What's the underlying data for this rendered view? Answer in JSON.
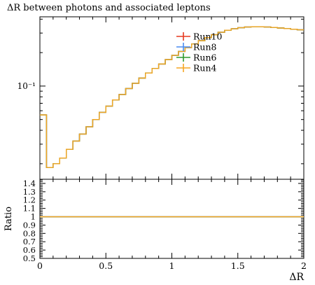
{
  "chart_data": [
    {
      "type": "line",
      "title": "ΔR between photons and associated leptons",
      "xlabel": "",
      "ylabel": "",
      "yscale": "log",
      "xlim": [
        0,
        2
      ],
      "ylim": [
        0.0145,
        0.42
      ],
      "y_ticks": [
        {
          "value": 0.1,
          "label": "10⁻¹"
        }
      ],
      "legend": {
        "position": "top-right"
      },
      "x_edges": [
        0,
        0.05,
        0.1,
        0.15,
        0.2,
        0.25,
        0.3,
        0.35,
        0.4,
        0.45,
        0.5,
        0.55,
        0.6,
        0.65,
        0.7,
        0.75,
        0.8,
        0.85,
        0.9,
        0.95,
        1.0,
        1.05,
        1.1,
        1.15,
        1.2,
        1.25,
        1.3,
        1.35,
        1.4,
        1.45,
        1.5,
        1.55,
        1.6,
        1.65,
        1.7,
        1.75,
        1.8,
        1.85,
        1.9,
        1.95,
        2.0
      ],
      "series": [
        {
          "name": "Run10",
          "color": "#e6381f",
          "values": [
            0.055,
            0.0185,
            0.02,
            0.0225,
            0.027,
            0.032,
            0.037,
            0.043,
            0.05,
            0.058,
            0.066,
            0.075,
            0.084,
            0.095,
            0.106,
            0.118,
            0.131,
            0.144,
            0.158,
            0.173,
            0.189,
            0.205,
            0.222,
            0.239,
            0.256,
            0.273,
            0.29,
            0.305,
            0.318,
            0.328,
            0.335,
            0.34,
            0.342,
            0.342,
            0.34,
            0.337,
            0.333,
            0.329,
            0.325,
            0.321
          ]
        },
        {
          "name": "Run8",
          "color": "#4a8cf0",
          "values": [
            0.055,
            0.0185,
            0.02,
            0.0225,
            0.027,
            0.032,
            0.037,
            0.043,
            0.05,
            0.058,
            0.066,
            0.075,
            0.084,
            0.095,
            0.106,
            0.118,
            0.131,
            0.144,
            0.158,
            0.173,
            0.189,
            0.205,
            0.222,
            0.239,
            0.256,
            0.273,
            0.29,
            0.305,
            0.318,
            0.328,
            0.335,
            0.34,
            0.342,
            0.342,
            0.34,
            0.337,
            0.333,
            0.329,
            0.325,
            0.321
          ]
        },
        {
          "name": "Run6",
          "color": "#2e9a2e",
          "values": [
            0.055,
            0.0185,
            0.02,
            0.0225,
            0.027,
            0.032,
            0.037,
            0.043,
            0.05,
            0.058,
            0.066,
            0.075,
            0.084,
            0.095,
            0.106,
            0.118,
            0.131,
            0.144,
            0.158,
            0.173,
            0.189,
            0.205,
            0.222,
            0.239,
            0.256,
            0.273,
            0.29,
            0.305,
            0.318,
            0.328,
            0.335,
            0.34,
            0.342,
            0.342,
            0.34,
            0.337,
            0.333,
            0.329,
            0.325,
            0.321
          ]
        },
        {
          "name": "Run4",
          "color": "#f5a623",
          "values": [
            0.055,
            0.0185,
            0.02,
            0.0225,
            0.027,
            0.032,
            0.037,
            0.043,
            0.05,
            0.058,
            0.066,
            0.075,
            0.084,
            0.095,
            0.106,
            0.118,
            0.131,
            0.144,
            0.158,
            0.173,
            0.189,
            0.205,
            0.222,
            0.239,
            0.256,
            0.273,
            0.29,
            0.305,
            0.318,
            0.328,
            0.335,
            0.34,
            0.342,
            0.342,
            0.34,
            0.337,
            0.333,
            0.329,
            0.325,
            0.321
          ]
        }
      ]
    },
    {
      "type": "line",
      "title": "",
      "xlabel": "ΔR",
      "ylabel": "Ratio",
      "xlim": [
        0,
        2
      ],
      "ylim": [
        0.5,
        1.45
      ],
      "x_ticks": [
        {
          "value": 0,
          "label": "0"
        },
        {
          "value": 0.5,
          "label": "0.5"
        },
        {
          "value": 1,
          "label": "1"
        },
        {
          "value": 1.5,
          "label": "1.5"
        },
        {
          "value": 2,
          "label": "2"
        }
      ],
      "y_ticks": [
        {
          "value": 0.5,
          "label": "0.5"
        },
        {
          "value": 0.6,
          "label": "0.6"
        },
        {
          "value": 0.7,
          "label": "0.7"
        },
        {
          "value": 0.8,
          "label": "0.8"
        },
        {
          "value": 0.9,
          "label": "0.9"
        },
        {
          "value": 1.0,
          "label": "1"
        },
        {
          "value": 1.1,
          "label": "1.1"
        },
        {
          "value": 1.2,
          "label": "1.2"
        },
        {
          "value": 1.3,
          "label": "1.3"
        },
        {
          "value": 1.4,
          "label": "1.4"
        }
      ],
      "series": [
        {
          "name": "Run10",
          "color": "#e6381f",
          "value": 1.0
        },
        {
          "name": "Run8",
          "color": "#4a8cf0",
          "value": 1.0
        },
        {
          "name": "Run6",
          "color": "#2e9a2e",
          "value": 1.0
        },
        {
          "name": "Run4",
          "color": "#f5a623",
          "value": 1.0
        }
      ]
    }
  ]
}
